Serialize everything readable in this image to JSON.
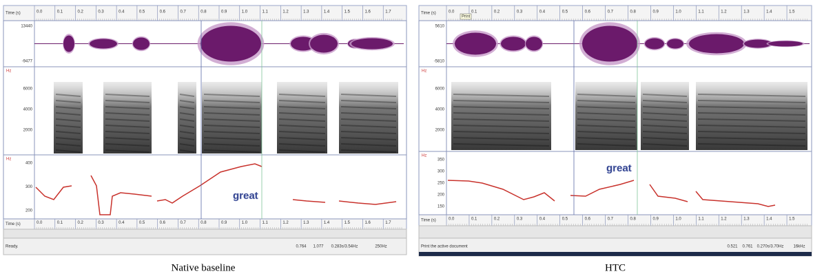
{
  "panels": [
    {
      "caption": "Native baseline",
      "time_label": "Time (s)",
      "time_ticks": [
        "0.0",
        "0.1",
        "0.2",
        "0.3",
        "0.4",
        "0.5",
        "0.6",
        "0.7",
        "0.8",
        "0.9",
        "1.0",
        "1.1",
        "1.2",
        "1.3",
        "1.4",
        "1.5",
        "1.6",
        "1.7"
      ],
      "wave_labels": [
        "13440",
        "-9477"
      ],
      "spec_unit": "Hz",
      "spec_ticks": [
        "6000",
        "4000",
        "2000"
      ],
      "pitch_unit": "Hz",
      "pitch_ticks": [
        "400",
        "300",
        "200"
      ],
      "word": "great",
      "status": "Ready.",
      "status_fields": [
        "0.764",
        "1.077",
        "0.283s/3.54Hz",
        "250Hz"
      ]
    },
    {
      "caption": "HTC",
      "time_label": "Time (s)",
      "time_ticks": [
        "0.0",
        "0.1",
        "0.2",
        "0.3",
        "0.4",
        "0.5",
        "0.6",
        "0.7",
        "0.8",
        "0.9",
        "1.0",
        "1.1",
        "1.2",
        "1.3",
        "1.4",
        "1.5"
      ],
      "wave_labels": [
        "5610",
        "-5810"
      ],
      "tooltip": "Print",
      "spec_unit": "Hz",
      "spec_ticks": [
        "6000",
        "4000",
        "2000"
      ],
      "pitch_unit": "Hz",
      "pitch_ticks": [
        "350",
        "300",
        "250",
        "200",
        "150"
      ],
      "word": "great",
      "status": "Print the active document",
      "status_fields": [
        "0.521",
        "0.761",
        "0.270s/3.70Hz",
        "16kHz"
      ]
    }
  ]
}
